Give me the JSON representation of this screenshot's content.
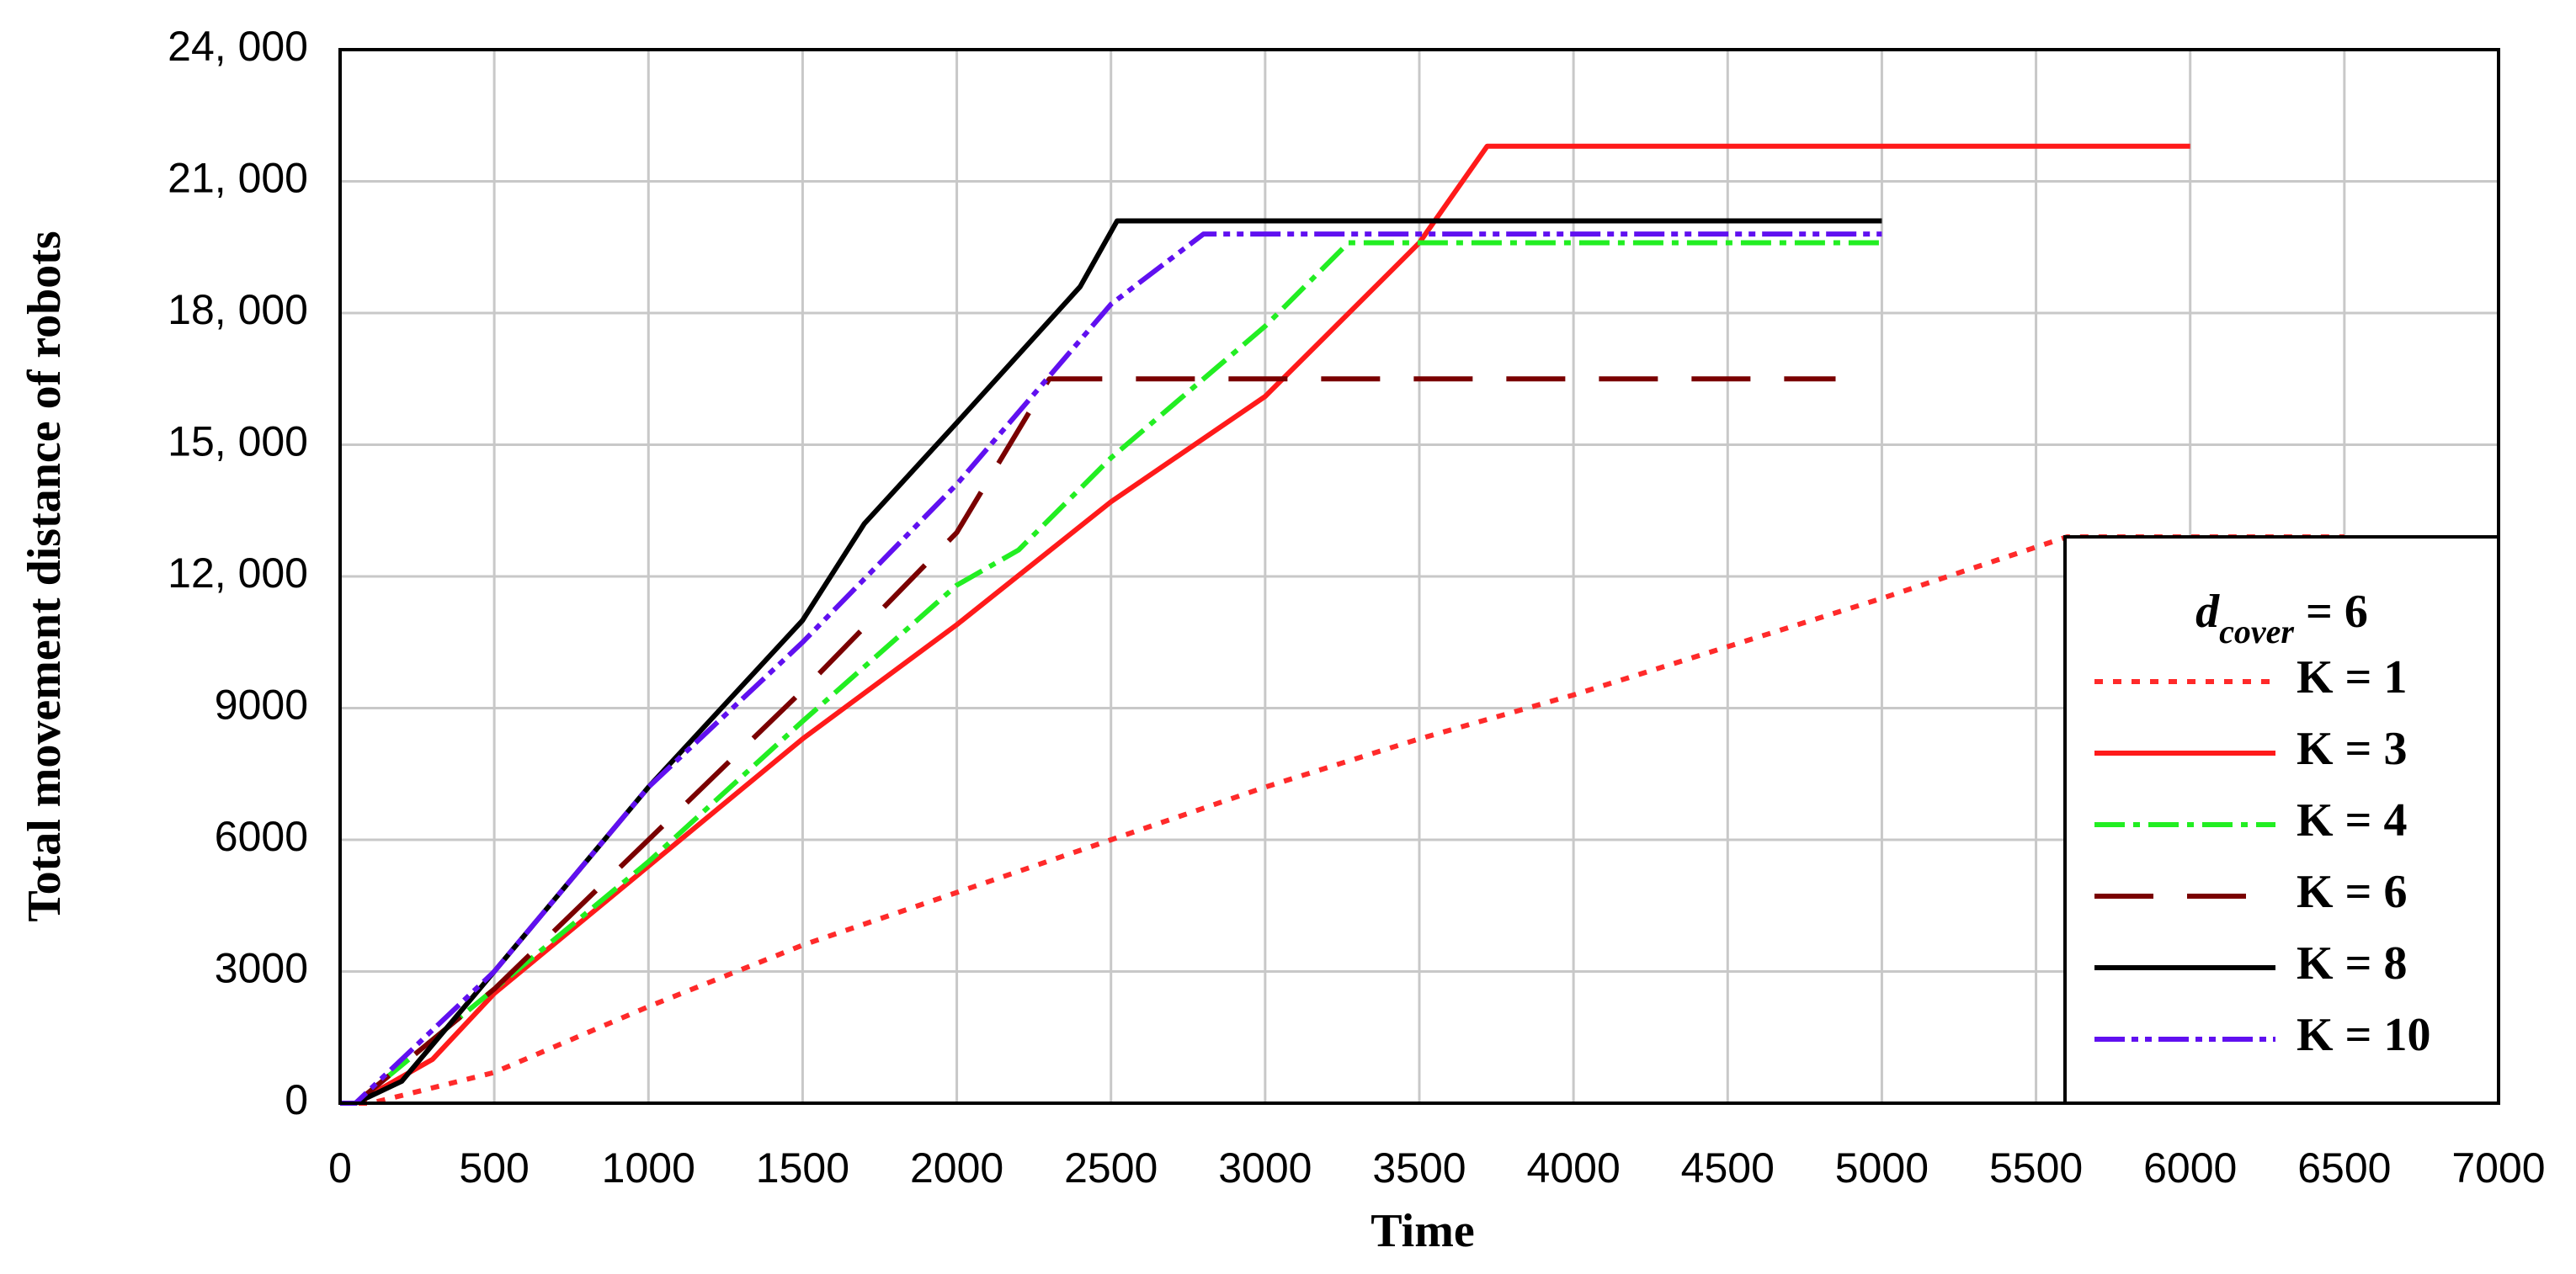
{
  "chart_data": {
    "type": "line",
    "x_label": "Time",
    "y_label": "Total movement distance of robots",
    "legend_title": {
      "main": "d",
      "subscript": "cover",
      "rest": " = 6"
    },
    "legend_position": "lower right",
    "grid": true,
    "xlim": [
      0,
      7000
    ],
    "xticks": [
      0,
      500,
      1000,
      1500,
      2000,
      2500,
      3000,
      3500,
      4000,
      4500,
      5000,
      5500,
      6000,
      6500,
      7000
    ],
    "ylim": [
      0,
      24000
    ],
    "yticks": [
      0,
      3000,
      6000,
      9000,
      {
        "value": 12000,
        "label": "12, 000"
      },
      {
        "value": 15000,
        "label": "15, 000"
      },
      {
        "value": 18000,
        "label": "18, 000"
      },
      {
        "value": 21000,
        "label": "21, 000"
      },
      {
        "value": 24000,
        "label": "24, 000"
      }
    ],
    "series": [
      {
        "name": "K = 1",
        "color": "#ff2a2a",
        "line_style": "dotted",
        "x": [
          0,
          100,
          500,
          1000,
          1500,
          2000,
          2500,
          3000,
          3500,
          4000,
          4500,
          5000,
          5600,
          6500
        ],
        "values": [
          0,
          0,
          700,
          2200,
          3600,
          4800,
          6000,
          7200,
          8300,
          9300,
          10400,
          11500,
          12900,
          12900
        ]
      },
      {
        "name": "K = 3",
        "color": "#ff1a1a",
        "line_style": "solid",
        "x": [
          0,
          50,
          300,
          500,
          1000,
          1500,
          2000,
          2500,
          3000,
          3200,
          3500,
          3720,
          6000
        ],
        "values": [
          0,
          0,
          1000,
          2500,
          5400,
          8300,
          10900,
          13700,
          16100,
          17500,
          19600,
          21800,
          21800
        ]
      },
      {
        "name": "K = 4",
        "color": "#22ee22",
        "line_style": "dash-dot",
        "x": [
          0,
          50,
          500,
          1000,
          1500,
          2000,
          2200,
          2500,
          3000,
          3270,
          5000
        ],
        "values": [
          0,
          0,
          2600,
          5500,
          8700,
          11800,
          12600,
          14700,
          17700,
          19600,
          19600
        ]
      },
      {
        "name": "K = 6",
        "color": "#7a0000",
        "line_style": "long-dash",
        "x": [
          0,
          50,
          500,
          1000,
          1500,
          2000,
          2300,
          4850
        ],
        "values": [
          0,
          0,
          2600,
          6000,
          9400,
          13000,
          16500,
          16500
        ]
      },
      {
        "name": "K = 8",
        "color": "#000000",
        "line_style": "solid",
        "x": [
          0,
          50,
          200,
          500,
          1000,
          1500,
          1700,
          2000,
          2400,
          2520,
          5000
        ],
        "values": [
          0,
          0,
          500,
          3000,
          7200,
          11000,
          13200,
          15500,
          18600,
          20100,
          20100
        ]
      },
      {
        "name": "K = 10",
        "color": "#6010f0",
        "line_style": "dash-dot-dot",
        "x": [
          0,
          50,
          500,
          1000,
          1500,
          2000,
          2500,
          2800,
          5000
        ],
        "values": [
          0,
          0,
          3000,
          7200,
          10500,
          14100,
          18200,
          19800,
          19800
        ]
      }
    ]
  }
}
